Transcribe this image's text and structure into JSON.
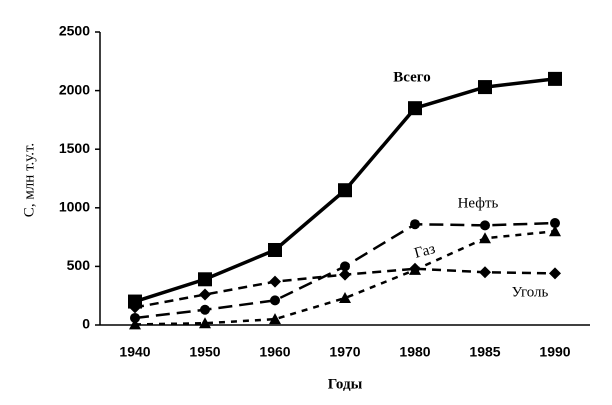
{
  "chart_data": {
    "type": "line",
    "y_label": "C, млн т.у.т.",
    "x_label": "Годы",
    "categories": [
      "1940",
      "1950",
      "1960",
      "1970",
      "1980",
      "1985",
      "1990"
    ],
    "series": [
      {
        "name": "Всего",
        "color": "#000000",
        "marker": "square",
        "dash": "solid",
        "width": 3.5,
        "values": [
          200,
          390,
          640,
          1150,
          1850,
          2030,
          2100
        ]
      },
      {
        "name": "Нефть",
        "color": "#000000",
        "marker": "circle",
        "dash": "long",
        "width": 2.5,
        "values": [
          60,
          130,
          210,
          500,
          860,
          850,
          870
        ]
      },
      {
        "name": "Газ",
        "color": "#000000",
        "marker": "triangle",
        "dash": "short",
        "width": 2.5,
        "values": [
          5,
          15,
          50,
          230,
          470,
          740,
          800
        ]
      },
      {
        "name": "Уголь",
        "color": "#000000",
        "marker": "diamond",
        "dash": "medium",
        "width": 2.5,
        "values": [
          150,
          260,
          370,
          430,
          480,
          450,
          440
        ]
      }
    ],
    "ylim": [
      0,
      2500
    ],
    "yticks": [
      0,
      500,
      1000,
      1500,
      2000,
      2500
    ],
    "grid": false
  }
}
